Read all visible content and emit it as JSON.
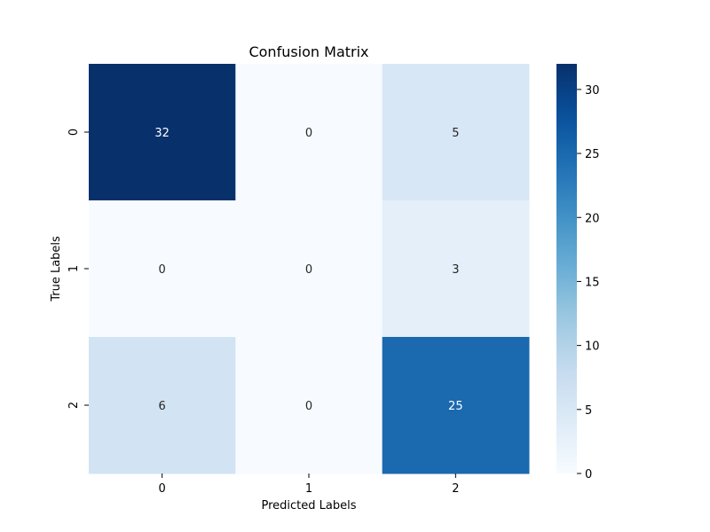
{
  "chart_data": {
    "type": "heatmap",
    "title": "Confusion Matrix",
    "xlabel": "Predicted Labels",
    "ylabel": "True Labels",
    "x_categories": [
      "0",
      "1",
      "2"
    ],
    "y_categories": [
      "0",
      "1",
      "2"
    ],
    "values": [
      [
        32,
        0,
        5
      ],
      [
        0,
        0,
        3
      ],
      [
        6,
        0,
        25
      ]
    ],
    "colormap": "Blues",
    "colorbar": {
      "range": [
        0,
        32
      ],
      "ticks": [
        0,
        5,
        10,
        15,
        20,
        25,
        30
      ]
    },
    "annotated": true
  }
}
